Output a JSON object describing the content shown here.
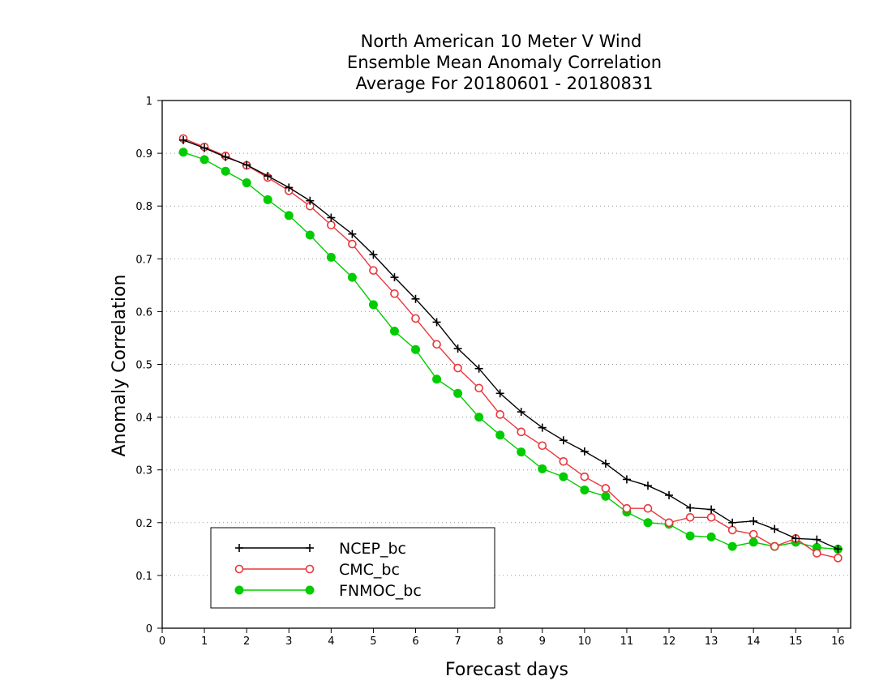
{
  "chart_data": {
    "type": "line",
    "title_lines": [
      "North American 10 Meter V Wind",
      "Ensemble Mean Anomaly Correlation",
      "Average For 20180601 - 20180831"
    ],
    "xlabel": "Forecast days",
    "ylabel": "Anomaly Correlation",
    "xlim": [
      0,
      16.3
    ],
    "ylim": [
      0,
      1
    ],
    "x_ticks": [
      0,
      1,
      2,
      3,
      4,
      5,
      6,
      7,
      8,
      9,
      10,
      11,
      12,
      13,
      14,
      15,
      16
    ],
    "y_ticks": [
      0,
      0.1,
      0.2,
      0.3,
      0.4,
      0.5,
      0.6,
      0.7,
      0.8,
      0.9,
      1
    ],
    "y_tick_labels": [
      "0",
      "0.1",
      "0.2",
      "0.3",
      "0.4",
      "0.5",
      "0.6",
      "0.7",
      "0.8",
      "0.9",
      "1"
    ],
    "grid": "horizontal dotted",
    "legend_position": "bottom-left",
    "x": [
      0.5,
      1,
      1.5,
      2,
      2.5,
      3,
      3.5,
      4,
      4.5,
      5,
      5.5,
      6,
      6.5,
      7,
      7.5,
      8,
      8.5,
      9,
      9.5,
      10,
      10.5,
      11,
      11.5,
      12,
      12.5,
      13,
      13.5,
      14,
      14.5,
      15,
      15.5,
      16
    ],
    "series": [
      {
        "name": "NCEP_bc",
        "color": "#000000",
        "marker": "plus",
        "values": [
          0.925,
          0.91,
          0.893,
          0.878,
          0.857,
          0.835,
          0.81,
          0.778,
          0.747,
          0.708,
          0.665,
          0.624,
          0.58,
          0.53,
          0.492,
          0.445,
          0.41,
          0.38,
          0.356,
          0.335,
          0.312,
          0.282,
          0.27,
          0.252,
          0.228,
          0.225,
          0.2,
          0.203,
          0.188,
          0.17,
          0.168,
          0.15
        ]
      },
      {
        "name": "CMC_bc",
        "color": "#e8373b",
        "marker": "open-circle",
        "values": [
          0.928,
          0.912,
          0.895,
          0.877,
          0.854,
          0.829,
          0.8,
          0.764,
          0.728,
          0.678,
          0.634,
          0.587,
          0.538,
          0.493,
          0.455,
          0.405,
          0.372,
          0.346,
          0.316,
          0.287,
          0.265,
          0.227,
          0.227,
          0.2,
          0.21,
          0.21,
          0.186,
          0.178,
          0.155,
          0.17,
          0.142,
          0.133
        ]
      },
      {
        "name": "FNMOC_bc",
        "color": "#00cc00",
        "marker": "filled-circle",
        "values": [
          0.902,
          0.888,
          0.866,
          0.844,
          0.812,
          0.782,
          0.745,
          0.703,
          0.665,
          0.613,
          0.563,
          0.528,
          0.472,
          0.445,
          0.4,
          0.366,
          0.334,
          0.302,
          0.287,
          0.262,
          0.25,
          0.22,
          0.2,
          0.197,
          0.175,
          0.173,
          0.155,
          0.163,
          0.155,
          0.163,
          0.153,
          0.15
        ]
      }
    ]
  }
}
